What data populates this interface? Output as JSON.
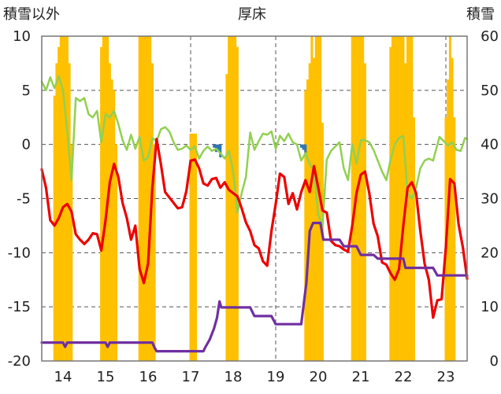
{
  "chart_data": {
    "type": "line",
    "title": "厚床",
    "left_axis_label": "積雪以外",
    "right_axis_label": "積雪",
    "ylim_left": [
      -20,
      10
    ],
    "yticks_left": [
      10,
      5,
      0,
      -5,
      -10,
      -15,
      -20
    ],
    "ylim_right": [
      0,
      60
    ],
    "yticks_right": [
      60,
      50,
      40,
      30,
      20,
      10,
      0
    ],
    "xlim": [
      13.5,
      23.5
    ],
    "xticks": [
      14,
      15,
      16,
      17,
      18,
      19,
      20,
      21,
      22,
      23
    ],
    "grid": true,
    "colors": {
      "red": "#ee0000",
      "green": "#92d050",
      "purple": "#7030a0",
      "orange": "#ffc000",
      "blue": "#2e75b6"
    },
    "series": [
      {
        "color": "red",
        "points": [
          [
            13.5,
            -2.3
          ],
          [
            13.6,
            -4
          ],
          [
            13.7,
            -7
          ],
          [
            13.8,
            -7.5
          ],
          [
            13.9,
            -6.8
          ],
          [
            14,
            -5.8
          ],
          [
            14.1,
            -5.5
          ],
          [
            14.2,
            -6.2
          ],
          [
            14.3,
            -8.3
          ],
          [
            14.4,
            -8.8
          ],
          [
            14.5,
            -9.2
          ],
          [
            14.6,
            -8.8
          ],
          [
            14.7,
            -8.2
          ],
          [
            14.8,
            -8.3
          ],
          [
            14.9,
            -9.8
          ],
          [
            15,
            -7
          ],
          [
            15.1,
            -3.5
          ],
          [
            15.2,
            -1.8
          ],
          [
            15.3,
            -3
          ],
          [
            15.4,
            -5.4
          ],
          [
            15.5,
            -6.8
          ],
          [
            15.6,
            -8.8
          ],
          [
            15.7,
            -7.5
          ],
          [
            15.8,
            -11.5
          ],
          [
            15.9,
            -12.8
          ],
          [
            16,
            -11
          ],
          [
            16.1,
            -4
          ],
          [
            16.2,
            0.5
          ],
          [
            16.3,
            -1.8
          ],
          [
            16.4,
            -4.4
          ],
          [
            16.5,
            -4.9
          ],
          [
            16.6,
            -5.4
          ],
          [
            16.7,
            -5.9
          ],
          [
            16.8,
            -5.8
          ],
          [
            16.9,
            -4.3
          ],
          [
            17,
            -1.5
          ],
          [
            17.1,
            -1.4
          ],
          [
            17.2,
            -2.2
          ],
          [
            17.3,
            -3.6
          ],
          [
            17.4,
            -3.8
          ],
          [
            17.5,
            -3.2
          ],
          [
            17.6,
            -3.1
          ],
          [
            17.7,
            -4
          ],
          [
            17.8,
            -3.5
          ],
          [
            17.9,
            -4.2
          ],
          [
            18,
            -4.5
          ],
          [
            18.1,
            -4.8
          ],
          [
            18.2,
            -5.9
          ],
          [
            18.3,
            -7.2
          ],
          [
            18.4,
            -8
          ],
          [
            18.5,
            -9.3
          ],
          [
            18.6,
            -9.6
          ],
          [
            18.7,
            -10.8
          ],
          [
            18.8,
            -11.2
          ],
          [
            18.9,
            -8
          ],
          [
            19,
            -5.5
          ],
          [
            19.1,
            -2.7
          ],
          [
            19.2,
            -3
          ],
          [
            19.3,
            -5.5
          ],
          [
            19.4,
            -4.5
          ],
          [
            19.5,
            -6
          ],
          [
            19.6,
            -4.4
          ],
          [
            19.7,
            -3.3
          ],
          [
            19.8,
            -4.4
          ],
          [
            19.9,
            -2
          ],
          [
            20,
            -4
          ],
          [
            20.1,
            -6.1
          ],
          [
            20.2,
            -6.3
          ],
          [
            20.3,
            -8.9
          ],
          [
            20.4,
            -9.3
          ],
          [
            20.5,
            -9.4
          ],
          [
            20.6,
            -9.7
          ],
          [
            20.7,
            -9.9
          ],
          [
            20.8,
            -7.5
          ],
          [
            20.9,
            -4.5
          ],
          [
            21,
            -2.8
          ],
          [
            21.1,
            -2.5
          ],
          [
            21.2,
            -4.5
          ],
          [
            21.3,
            -7.3
          ],
          [
            21.4,
            -8.5
          ],
          [
            21.5,
            -10.9
          ],
          [
            21.6,
            -11.1
          ],
          [
            21.7,
            -11.9
          ],
          [
            21.8,
            -12.5
          ],
          [
            21.9,
            -11.5
          ],
          [
            22,
            -7.5
          ],
          [
            22.1,
            -4
          ],
          [
            22.2,
            -3.5
          ],
          [
            22.3,
            -4.5
          ],
          [
            22.4,
            -8
          ],
          [
            22.5,
            -11
          ],
          [
            22.6,
            -12.5
          ],
          [
            22.7,
            -16
          ],
          [
            22.8,
            -14.4
          ],
          [
            22.9,
            -14.3
          ],
          [
            23,
            -9.5
          ],
          [
            23.1,
            -3.2
          ],
          [
            23.2,
            -3.6
          ],
          [
            23.3,
            -7.4
          ],
          [
            23.4,
            -9.5
          ],
          [
            23.5,
            -12.4
          ]
        ]
      },
      {
        "color": "green",
        "points": [
          [
            13.5,
            5.8
          ],
          [
            13.6,
            5
          ],
          [
            13.7,
            6.2
          ],
          [
            13.8,
            5.2
          ],
          [
            13.9,
            6.3
          ],
          [
            14,
            5
          ],
          [
            14.1,
            1.2
          ],
          [
            14.2,
            -3.3
          ],
          [
            14.3,
            4.3
          ],
          [
            14.4,
            4
          ],
          [
            14.5,
            4.3
          ],
          [
            14.6,
            2.8
          ],
          [
            14.7,
            2.5
          ],
          [
            14.8,
            3.1
          ],
          [
            14.9,
            0.2
          ],
          [
            15,
            2.8
          ],
          [
            15.1,
            2.5
          ],
          [
            15.2,
            3.1
          ],
          [
            15.3,
            1.9
          ],
          [
            15.4,
            0.4
          ],
          [
            15.5,
            -0.5
          ],
          [
            15.6,
            0.9
          ],
          [
            15.7,
            -0.4
          ],
          [
            15.8,
            0.7
          ],
          [
            15.9,
            -1.5
          ],
          [
            16,
            -1.2
          ],
          [
            16.1,
            0.6
          ],
          [
            16.2,
            0.3
          ],
          [
            16.3,
            1.4
          ],
          [
            16.4,
            1.6
          ],
          [
            16.5,
            1.2
          ],
          [
            16.6,
            0.2
          ],
          [
            16.7,
            -0.5
          ],
          [
            16.8,
            -0.4
          ],
          [
            16.9,
            -0.1
          ],
          [
            17,
            -0.5
          ],
          [
            17.1,
            -0.2
          ],
          [
            17.2,
            -1.3
          ],
          [
            17.3,
            -0.6
          ],
          [
            17.4,
            -0.2
          ],
          [
            17.5,
            -0.6
          ],
          [
            17.6,
            -0.4
          ],
          [
            17.7,
            -0.8
          ],
          [
            17.8,
            -1.3
          ],
          [
            17.9,
            -0.6
          ],
          [
            18,
            -2.5
          ],
          [
            18.1,
            -6.3
          ],
          [
            18.2,
            -4.5
          ],
          [
            18.3,
            -3
          ],
          [
            18.4,
            1.1
          ],
          [
            18.5,
            -0.5
          ],
          [
            18.6,
            0.3
          ],
          [
            18.7,
            1
          ],
          [
            18.8,
            0.9
          ],
          [
            18.9,
            1.2
          ],
          [
            19,
            -0.4
          ],
          [
            19.1,
            0.8
          ],
          [
            19.2,
            0.3
          ],
          [
            19.3,
            1
          ],
          [
            19.4,
            0.2
          ],
          [
            19.5,
            0
          ],
          [
            19.6,
            -1.5
          ],
          [
            19.7,
            -0.8
          ],
          [
            19.8,
            -1.8
          ],
          [
            19.9,
            -2.5
          ],
          [
            20,
            -6.5
          ],
          [
            20.1,
            -7.5
          ],
          [
            20.2,
            -1.4
          ],
          [
            20.3,
            -0.6
          ],
          [
            20.4,
            -0.2
          ],
          [
            20.5,
            0.2
          ],
          [
            20.6,
            -2.2
          ],
          [
            20.7,
            -3.3
          ],
          [
            20.8,
            0
          ],
          [
            20.9,
            -1.8
          ],
          [
            21,
            0.4
          ],
          [
            21.1,
            0.4
          ],
          [
            21.2,
            0.2
          ],
          [
            21.3,
            -0.5
          ],
          [
            21.4,
            -1.5
          ],
          [
            21.5,
            -2.5
          ],
          [
            21.6,
            -3.3
          ],
          [
            21.7,
            -1.4
          ],
          [
            21.8,
            0
          ],
          [
            21.9,
            0.6
          ],
          [
            22,
            0.8
          ],
          [
            22.1,
            -4.5
          ],
          [
            22.2,
            -5
          ],
          [
            22.3,
            -4
          ],
          [
            22.4,
            -2.2
          ],
          [
            22.5,
            -1.5
          ],
          [
            22.6,
            -1.3
          ],
          [
            22.7,
            -1.5
          ],
          [
            22.85,
            0.7
          ],
          [
            22.95,
            0.3
          ],
          [
            23.05,
            -0.1
          ],
          [
            23.15,
            0.2
          ],
          [
            23.25,
            -0.5
          ],
          [
            23.35,
            -0.6
          ],
          [
            23.45,
            0.6
          ],
          [
            23.5,
            0.5
          ]
        ]
      },
      {
        "color": "purple",
        "axis": "right",
        "points": [
          [
            13.5,
            3.4
          ],
          [
            14,
            3.4
          ],
          [
            14.05,
            2.6
          ],
          [
            14.1,
            3.4
          ],
          [
            14.6,
            3.4
          ],
          [
            14.75,
            3.4
          ],
          [
            15,
            3.4
          ],
          [
            15.05,
            2.6
          ],
          [
            15.1,
            3.4
          ],
          [
            16.1,
            3.4
          ],
          [
            16.15,
            2.5
          ],
          [
            16.2,
            1.8
          ],
          [
            17,
            1.8
          ],
          [
            17.2,
            1.8
          ],
          [
            17.3,
            1.8
          ],
          [
            17.35,
            2.6
          ],
          [
            17.45,
            4
          ],
          [
            17.55,
            6
          ],
          [
            17.62,
            8
          ],
          [
            17.68,
            11
          ],
          [
            17.72,
            9.9
          ],
          [
            18.4,
            9.9
          ],
          [
            18.5,
            8.3
          ],
          [
            18.9,
            8.3
          ],
          [
            19,
            6.8
          ],
          [
            19.6,
            6.8
          ],
          [
            19.72,
            14.4
          ],
          [
            19.8,
            24
          ],
          [
            19.88,
            25.5
          ],
          [
            20.05,
            25.5
          ],
          [
            20.12,
            22.4
          ],
          [
            20.5,
            22.4
          ],
          [
            20.6,
            21.2
          ],
          [
            20.9,
            21.2
          ],
          [
            21,
            19.6
          ],
          [
            21.3,
            19.6
          ],
          [
            21.4,
            18.9
          ],
          [
            21.9,
            18.9
          ],
          [
            22,
            18.9
          ],
          [
            22.05,
            17.2
          ],
          [
            22.7,
            17.2
          ],
          [
            22.8,
            15.8
          ],
          [
            23.5,
            15.8
          ]
        ]
      }
    ],
    "bars": [
      {
        "color": "orange",
        "axis": "right",
        "x": [
          13.8,
          13.85,
          13.9,
          13.95,
          14,
          14.05,
          14.1,
          14.15,
          14.2,
          14.9,
          14.95,
          15,
          15.05,
          15.1,
          15.15,
          15.2,
          15.25,
          15.8,
          15.85,
          15.9,
          15.95,
          16,
          16.05,
          16.1,
          16.15,
          17,
          17.05,
          17.1,
          17.12,
          17.85,
          17.9,
          17.95,
          18,
          18.05,
          18.1,
          19.7,
          19.75,
          19.8,
          19.85,
          19.9,
          19.95,
          20,
          20.05,
          20.1,
          20.8,
          20.85,
          20.9,
          20.95,
          21,
          21.05,
          21.1,
          21.7,
          21.75,
          21.8,
          21.85,
          21.9,
          21.95,
          22,
          22.05,
          22.1,
          22.15,
          22.2,
          22.25,
          23,
          23.05,
          23.1,
          23.15,
          23.2
        ],
        "values": [
          49,
          55,
          58,
          60,
          60,
          60,
          60,
          55,
          40,
          58,
          60,
          60,
          60,
          55,
          52,
          50,
          40,
          60,
          60,
          60,
          60,
          60,
          60,
          55,
          40,
          42,
          42,
          42,
          42,
          53,
          60,
          60,
          60,
          60,
          58,
          50,
          52,
          55,
          60,
          56,
          60,
          60,
          60,
          44,
          60,
          60,
          60,
          60,
          60,
          60,
          55,
          58,
          60,
          60,
          60,
          60,
          60,
          60,
          55,
          60,
          60,
          60,
          45,
          45,
          52,
          60,
          56,
          45
        ]
      },
      {
        "color": "blue",
        "points": [
          [
            17.55,
            -0.3
          ],
          [
            17.6,
            -0.7
          ],
          [
            17.65,
            -0.5
          ],
          [
            17.7,
            -1.2
          ],
          [
            19.6,
            -0.3
          ],
          [
            19.65,
            -0.5
          ],
          [
            19.7,
            -0.8
          ]
        ]
      }
    ]
  }
}
